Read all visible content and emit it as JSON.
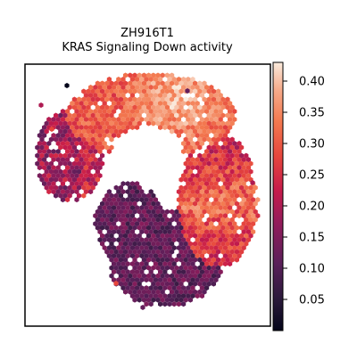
{
  "chart_data": {
    "type": "scatter",
    "subtype": "spatial-hexbin",
    "title_lines": [
      "ZH916T1",
      "KRAS Signaling Down activity"
    ],
    "colorbar": {
      "colormap": "rocket",
      "range": [
        0.0,
        0.43
      ],
      "ticks": [
        0.05,
        0.1,
        0.15,
        0.2,
        0.25,
        0.3,
        0.35,
        0.4
      ],
      "tick_labels": [
        "0.05",
        "0.10",
        "0.15",
        "0.20",
        "0.25",
        "0.30",
        "0.35",
        "0.40"
      ]
    },
    "axes": {
      "x_ticks": "none",
      "y_ticks": "none",
      "grid": false,
      "legend": "none"
    },
    "regions": [
      {
        "name": "upper arc (high activity)",
        "approx_value_range": [
          0.28,
          0.43
        ]
      },
      {
        "name": "left lobe",
        "approx_value_range": [
          0.1,
          0.3
        ]
      },
      {
        "name": "right band",
        "approx_value_range": [
          0.2,
          0.38
        ]
      },
      {
        "name": "lower tissue (low activity)",
        "approx_value_range": [
          0.02,
          0.18
        ]
      }
    ]
  }
}
